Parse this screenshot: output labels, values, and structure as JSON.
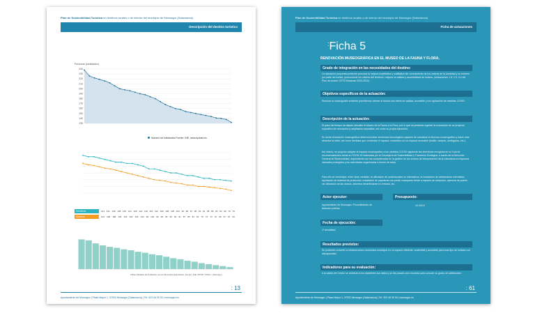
{
  "colors": {
    "accent": "#1f85ad",
    "right_bg": "#2a96b8",
    "dark_band": "#1d6f92",
    "hombres": "#2bb3c0",
    "mujeres": "#f39c24",
    "bars": "#8fd1c8"
  },
  "left": {
    "header_bold": "Plan de Sostenibilidad Turística",
    "header_rest": " en destinos rurales o de interior del municipio de Monsagro (Salamanca)",
    "band": "Descripción del destino turístico",
    "chart1": {
      "type": "line",
      "title": "Personas (cantidades)",
      "ylim": [
        130,
        240
      ],
      "yticks": [
        "240",
        "230",
        "220",
        "210",
        "200",
        "190",
        "180",
        "170",
        "160",
        "150",
        "140",
        "130"
      ],
      "values": [
        238,
        226,
        222,
        219,
        216,
        212,
        206,
        200,
        198,
        196,
        193,
        190,
        188,
        184,
        180,
        174,
        168,
        164,
        160,
        158,
        154,
        152,
        150,
        148,
        146,
        144,
        141,
        140,
        138,
        132
      ],
      "legend": "Número de habitantes    Fuente: INE, www.epdata.es"
    },
    "chart2": {
      "type": "line",
      "series_hombres": [
        116,
        114,
        114,
        112,
        110,
        108,
        106,
        106,
        104,
        104,
        102,
        100,
        96,
        96,
        94,
        92,
        90,
        90,
        88,
        86,
        86,
        84,
        82,
        82,
        80,
        80,
        79,
        78
      ],
      "series_mujeres": [
        104,
        102,
        101,
        99,
        97,
        96,
        94,
        92,
        90,
        88,
        86,
        84,
        82,
        80,
        79,
        78,
        76,
        75,
        74,
        72,
        72,
        70,
        70,
        69,
        68,
        67,
        66,
        64
      ]
    },
    "table": {
      "hombres_label": "Hombres",
      "mujeres_label": "Mujeres",
      "hombres": [
        "141",
        "141",
        "138",
        "138",
        "135",
        "131",
        "128",
        "120",
        "118",
        "115",
        "112",
        "109",
        "108",
        "105",
        "103",
        "99",
        "98",
        "97",
        "95",
        "93",
        "91",
        "88",
        "86",
        "84",
        "82",
        "80",
        "79",
        "76"
      ],
      "mujeres": [
        "104",
        "108",
        "108",
        "105",
        "106",
        "106",
        "105",
        "104",
        "99",
        "102",
        "99",
        "99",
        "96",
        "93",
        "92",
        "91",
        "87",
        "85",
        "81",
        "81",
        "76",
        "74",
        "73",
        "70",
        "68",
        "67",
        "67",
        "63"
      ]
    },
    "chart3": {
      "type": "bar",
      "values": [
        60,
        58,
        52,
        48,
        45,
        43,
        40,
        38,
        35,
        33,
        30,
        28,
        25,
        22,
        20,
        17,
        15,
        12,
        10,
        8,
        6,
        4
      ]
    },
    "source": "Cifras Oficiales de Población de los Municipios Españoles. Fuente: INE. DPOP / IISGO - Monsagro",
    "footer": "Ayuntamiento de Monsagro  |  Plaza Mayor 1,  37532  Monsagro (Salamanca)  |  Tel: 923 46 00 00  |  monsagro.es",
    "page_number": "13"
  },
  "right": {
    "header_bold": "Plan de Sostenibilidad Turística",
    "header_rest": " en destinos rurales o de interior del municipio de Monsagro (Salamanca)",
    "band": "Ficha de actuaciones",
    "ficha": "Ficha 5",
    "title": "RENOVACIÓN MUSEOGRÁFICA EN EL MUSEO DE LA FAUNA Y FLORA.",
    "s1_head": "Grado de integración en las necesidades del destino:",
    "s1_text": "La actuación propuesta pretende procurar la mejora cuantitativa y cualitativa del conocimiento de los valores de la localidad y su entorno por parte del turista, promocionar los valores del territorio, mejorar la calidad y accesibilidad de turismo. (actuaciones 1.6, 2.3, 4.4 del Plan de Acción CETS Batuecas 2020-2024)",
    "s2_head": "Objetivos específicos de la actuación:",
    "s2_text": "Renovar la museografía existente permitiendo ofrecer al turista una oferta de calidad, accesible y con aplicación de medidas COVID.",
    "s3_head": "Descripción de la actuación:",
    "s3_p1": "El paso del tiempo ha dejado obsoleto el Museo de la Fauna y la Flora, por lo que se presenta urgente la renovación de un proyecto expositivo de renovación y ampliación expositiva, así como su propia ejecución.",
    "s3_p2": "En dicha renovación museográfica deberá incluirse elementos tecnológicos capaces de actualizar el discurso museográfico y hacer más atractiva la visita, así como medidas que conviertan el espacio museístico en un espacio accesible (braille, rampas, audioguías, etc.).",
    "s3_p3": "Así mismo, se propone adaptar el espacio museográfico a las medidas COVID siguiendo las directrices recogidas en la Guía de recomendaciones frente al COVID-19 elaborada por la Consejería de Sostenibilidad y Transición Ecológica, a través de la Dirección General de Biodiversidad, dependiente con las competencias en la gestión de los centros de interpretación de la naturaleza en espacios naturales protegidos y las actividades organizadas a través de estos.",
    "s3_p4": "Para ello se fomentará, entre otras medidas, la utilización de audiovisuales no interactivos, la instalación de señalización orientativa, aportación de material de protección, instalación de papeleras con pedal, mamparas frente a espacio de recepción, apertura de puerta sin utilización de las manos, alfombra desinfectante en entrada, etc.",
    "s4_head": "Actor ejecutor:",
    "s4_text": "Ayuntamiento de Monsagro. Procedimiento de licitación pública.",
    "s5_head": "Presupuesto:",
    "s5_text": "40.000 €",
    "s6_head": "Fecha de ejecución:",
    "s6_text": "1ª anualidad",
    "s7_head": "Resultados previstos:",
    "s7_text": "Se pretende convertir la infraestructura museística municipal en un espacio eficiente, sostenible y accesible para todo tipo de turistas con discapacidad.",
    "s8_head": "Indicadores para su evaluación:",
    "s8_text": "A la salida del Centro se anotarán a los asistentes sus datos y se les pasará una encuesta para conocer su grado de satisfacción.",
    "footer": "Ayuntamiento de Monsagro  |  Plaza Mayor 1,  37532  Monsagro (Salamanca)  |  Tel: 923 46 00 00  |  monsagro.es",
    "page_number": "61"
  }
}
